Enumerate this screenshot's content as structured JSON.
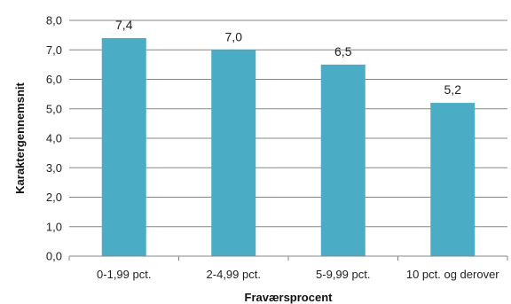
{
  "chart_data": {
    "type": "bar",
    "categories": [
      "0-1,99 pct.",
      "2-4,99 pct.",
      "5-9,99 pct.",
      "10 pct. og derover"
    ],
    "values": [
      7.4,
      7.0,
      6.5,
      5.2
    ],
    "data_labels": [
      "7,4",
      "7,0",
      "6,5",
      "5,2"
    ],
    "xlabel": "Fraværsprocent",
    "ylabel": "Karaktergennemsnit",
    "ylim": [
      0,
      8
    ],
    "yticks": [
      0,
      1,
      2,
      3,
      4,
      5,
      6,
      7,
      8
    ],
    "ytick_labels": [
      "0,0",
      "1,0",
      "2,0",
      "3,0",
      "4,0",
      "5,0",
      "6,0",
      "7,0",
      "8,0"
    ],
    "grid": true,
    "bar_color": "#4bacc6",
    "grid_color": "#878787"
  }
}
